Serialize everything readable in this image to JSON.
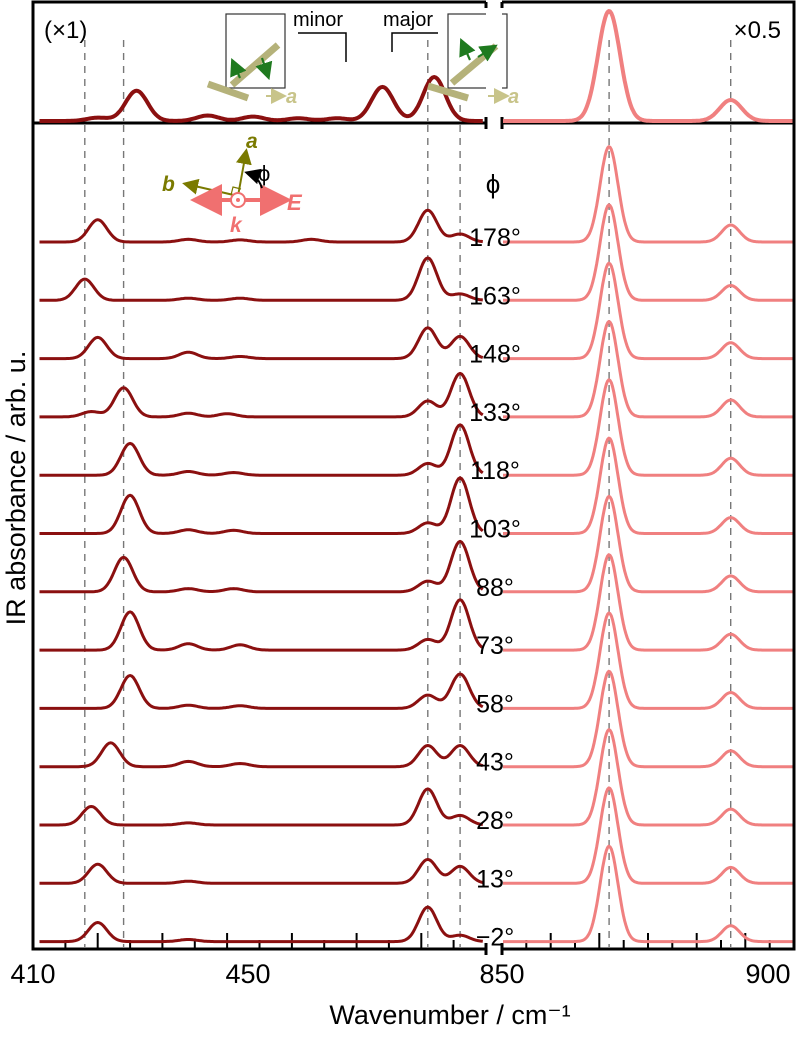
{
  "chart_data": {
    "type": "line",
    "xlabel": "Wavenumber / cm⁻¹",
    "ylabel": "IR absorbance / arb. u.",
    "x_axis_break": true,
    "xlim_left": [
      410,
      480
    ],
    "xlim_right": [
      850,
      910
    ],
    "x_ticks_left": [
      410,
      450
    ],
    "x_ticks_right": [
      850,
      900
    ],
    "top_panel": {
      "left_multiplier": "(×1)",
      "right_multiplier": "×0.5",
      "mode_labels": [
        "minor",
        "major"
      ],
      "inset_axis_label": "a",
      "peaks": {
        "left": [
          {
            "x": 426,
            "h": 0.55
          },
          {
            "x": 420,
            "h": 0.06
          },
          {
            "x": 437,
            "h": 0.1
          },
          {
            "x": 444,
            "h": 0.08
          },
          {
            "x": 451,
            "h": 0.05
          },
          {
            "x": 457,
            "h": 0.05
          },
          {
            "x": 464,
            "h": 0.62
          },
          {
            "x": 472,
            "h": 0.8
          }
        ],
        "right": [
          {
            "x": 872,
            "h": 2.2
          },
          {
            "x": 897,
            "h": 0.42
          }
        ]
      }
    },
    "polarization_diagram": {
      "labels": [
        "a",
        "b",
        "ϕ",
        "E",
        "k"
      ]
    },
    "series_header": "ϕ",
    "reference_lines": [
      418,
      424,
      471,
      476,
      872,
      897
    ],
    "series": [
      {
        "name": "178°",
        "left_peaks": [
          {
            "x": 420,
            "h": 0.42
          },
          {
            "x": 434,
            "h": 0.05
          },
          {
            "x": 442,
            "h": 0.04
          },
          {
            "x": 453,
            "h": 0.05
          },
          {
            "x": 471,
            "h": 0.6
          },
          {
            "x": 476,
            "h": 0.15
          }
        ],
        "right_peaks": [
          {
            "x": 872,
            "h": 1.8
          },
          {
            "x": 897,
            "h": 0.32
          }
        ]
      },
      {
        "name": "163°",
        "left_peaks": [
          {
            "x": 418,
            "h": 0.4
          },
          {
            "x": 434,
            "h": 0.04
          },
          {
            "x": 442,
            "h": 0.04
          },
          {
            "x": 471,
            "h": 0.8
          },
          {
            "x": 476,
            "h": 0.12
          }
        ],
        "right_peaks": [
          {
            "x": 872,
            "h": 1.8
          },
          {
            "x": 897,
            "h": 0.28
          }
        ]
      },
      {
        "name": "148°",
        "left_peaks": [
          {
            "x": 420,
            "h": 0.4
          },
          {
            "x": 434,
            "h": 0.12
          },
          {
            "x": 442,
            "h": 0.04
          },
          {
            "x": 471,
            "h": 0.58
          },
          {
            "x": 476,
            "h": 0.42
          }
        ],
        "right_peaks": [
          {
            "x": 872,
            "h": 1.8
          },
          {
            "x": 897,
            "h": 0.3
          }
        ]
      },
      {
        "name": "133°",
        "left_peaks": [
          {
            "x": 424,
            "h": 0.55
          },
          {
            "x": 419,
            "h": 0.1
          },
          {
            "x": 434,
            "h": 0.07
          },
          {
            "x": 440,
            "h": 0.06
          },
          {
            "x": 471,
            "h": 0.3
          },
          {
            "x": 476,
            "h": 0.82
          }
        ],
        "right_peaks": [
          {
            "x": 872,
            "h": 1.8
          },
          {
            "x": 897,
            "h": 0.32
          }
        ]
      },
      {
        "name": "118°",
        "left_peaks": [
          {
            "x": 425,
            "h": 0.6
          },
          {
            "x": 434,
            "h": 0.07
          },
          {
            "x": 441,
            "h": 0.05
          },
          {
            "x": 471,
            "h": 0.22
          },
          {
            "x": 476,
            "h": 0.95
          }
        ],
        "right_peaks": [
          {
            "x": 872,
            "h": 1.8
          },
          {
            "x": 897,
            "h": 0.32
          }
        ]
      },
      {
        "name": "103°",
        "left_peaks": [
          {
            "x": 425,
            "h": 0.72
          },
          {
            "x": 434,
            "h": 0.07
          },
          {
            "x": 441,
            "h": 0.06
          },
          {
            "x": 471,
            "h": 0.2
          },
          {
            "x": 476,
            "h": 1.05
          }
        ],
        "right_peaks": [
          {
            "x": 872,
            "h": 1.8
          },
          {
            "x": 897,
            "h": 0.3
          }
        ]
      },
      {
        "name": "88°",
        "left_peaks": [
          {
            "x": 424,
            "h": 0.65
          },
          {
            "x": 434,
            "h": 0.06
          },
          {
            "x": 441,
            "h": 0.06
          },
          {
            "x": 471,
            "h": 0.2
          },
          {
            "x": 476,
            "h": 0.95
          }
        ],
        "right_peaks": [
          {
            "x": 872,
            "h": 1.8
          },
          {
            "x": 897,
            "h": 0.3
          }
        ]
      },
      {
        "name": "73°",
        "left_peaks": [
          {
            "x": 425,
            "h": 0.72
          },
          {
            "x": 434,
            "h": 0.12
          },
          {
            "x": 442,
            "h": 0.1
          },
          {
            "x": 471,
            "h": 0.2
          },
          {
            "x": 476,
            "h": 0.95
          }
        ],
        "right_peaks": [
          {
            "x": 872,
            "h": 1.8
          },
          {
            "x": 897,
            "h": 0.3
          }
        ]
      },
      {
        "name": "58°",
        "left_peaks": [
          {
            "x": 425,
            "h": 0.62
          },
          {
            "x": 434,
            "h": 0.06
          },
          {
            "x": 442,
            "h": 0.05
          },
          {
            "x": 471,
            "h": 0.25
          },
          {
            "x": 476,
            "h": 0.65
          }
        ],
        "right_peaks": [
          {
            "x": 872,
            "h": 1.8
          },
          {
            "x": 897,
            "h": 0.3
          }
        ]
      },
      {
        "name": "43°",
        "left_peaks": [
          {
            "x": 422,
            "h": 0.45
          },
          {
            "x": 434,
            "h": 0.1
          },
          {
            "x": 442,
            "h": 0.06
          },
          {
            "x": 471,
            "h": 0.4
          },
          {
            "x": 476,
            "h": 0.4
          }
        ],
        "right_peaks": [
          {
            "x": 872,
            "h": 1.8
          },
          {
            "x": 897,
            "h": 0.3
          }
        ]
      },
      {
        "name": "28°",
        "left_peaks": [
          {
            "x": 419,
            "h": 0.35
          },
          {
            "x": 434,
            "h": 0.04
          },
          {
            "x": 471,
            "h": 0.68
          },
          {
            "x": 476,
            "h": 0.18
          }
        ],
        "right_peaks": [
          {
            "x": 872,
            "h": 1.8
          },
          {
            "x": 897,
            "h": 0.3
          }
        ]
      },
      {
        "name": "13°",
        "left_peaks": [
          {
            "x": 420,
            "h": 0.36
          },
          {
            "x": 434,
            "h": 0.04
          },
          {
            "x": 471,
            "h": 0.45
          },
          {
            "x": 476,
            "h": 0.32
          }
        ],
        "right_peaks": [
          {
            "x": 872,
            "h": 1.8
          },
          {
            "x": 897,
            "h": 0.3
          }
        ]
      },
      {
        "name": "−2°",
        "left_peaks": [
          {
            "x": 420,
            "h": 0.36
          },
          {
            "x": 434,
            "h": 0.04
          },
          {
            "x": 471,
            "h": 0.65
          },
          {
            "x": 476,
            "h": 0.12
          }
        ],
        "right_peaks": [
          {
            "x": 872,
            "h": 1.8
          },
          {
            "x": 897,
            "h": 0.3
          }
        ]
      }
    ],
    "colors": {
      "left": "#8b1010",
      "right": "#f08080",
      "vector": "#2e8b2e",
      "crystal": "#b5b27a",
      "axis_a": "#8a8a00",
      "E_arrow": "#f07070"
    },
    "grid": false
  }
}
